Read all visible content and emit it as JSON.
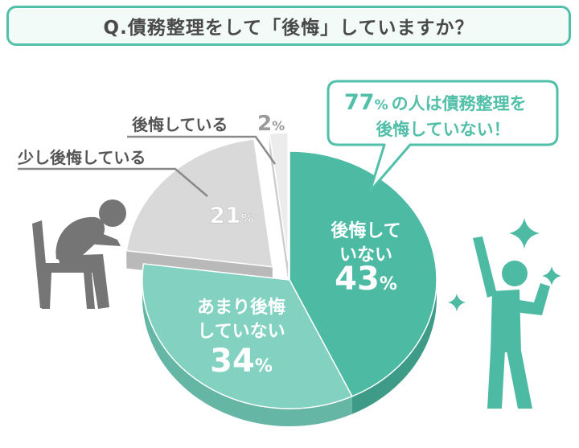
{
  "title": "Q.債務整理をして「後悔」していますか？",
  "callout": {
    "line1_number": "77",
    "line1_percent": "%",
    "line1_rest": "の人は債務整理を",
    "line2": "後悔していない！"
  },
  "colors": {
    "accent": "#52bfa8",
    "slice_not_regret": "#4dbaa4",
    "slice_not_much": "#83d2c1",
    "slice_somewhat": "#d9d9d9",
    "slice_regret": "#ececec",
    "figure_gray": "#757575",
    "figure_teal": "#4dbaa4"
  },
  "icons": [
    "sad-person-sitting-icon",
    "happy-person-cheering-icon",
    "sparkle-icon"
  ],
  "chart_data": {
    "type": "pie",
    "title": "Q.債務整理をして「後悔」していますか？",
    "start_angle_deg": 0,
    "direction": "clockwise",
    "slices": [
      {
        "label_lines": [
          "後悔して",
          "いない"
        ],
        "value": 43,
        "value_text": "43",
        "unit": "%",
        "color": "#4dbaa4",
        "side": "#3d9b87",
        "exploded": false
      },
      {
        "label_lines": [
          "あまり後悔",
          "していない"
        ],
        "value": 34,
        "value_text": "34",
        "unit": "%",
        "color": "#83d2c1",
        "side": "#66b6a5",
        "exploded": false
      },
      {
        "label_lines": [
          "少し後悔している"
        ],
        "value": 21,
        "value_text": "21",
        "unit": "%",
        "color": "#d9d9d9",
        "side": "#b9b9b9",
        "exploded": true
      },
      {
        "label_lines": [
          "後悔している"
        ],
        "value": 2,
        "value_text": "2",
        "unit": "%",
        "color": "#ececec",
        "side": "#cdcdcd",
        "exploded": true
      }
    ]
  }
}
